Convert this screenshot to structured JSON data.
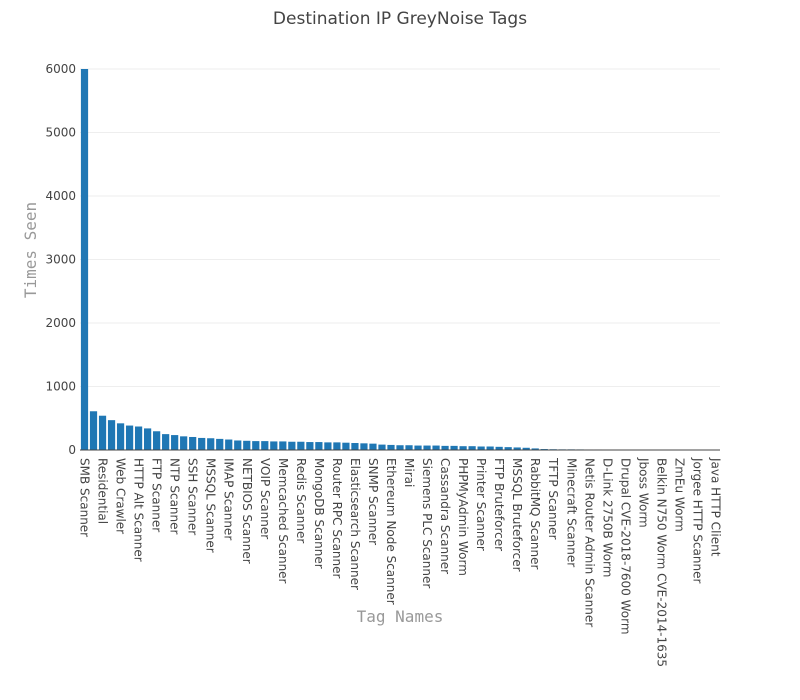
{
  "chart_data": {
    "type": "bar",
    "title": "Destination IP GreyNoise Tags",
    "x_label": "Tag Names",
    "y_label": "Times Seen",
    "color": "#1f77b4",
    "grid": true,
    "ylim": [
      0,
      6000
    ],
    "yticks": [
      0,
      1000,
      2000,
      3000,
      4000,
      5000,
      6000
    ],
    "categories": [
      "SMB Scanner",
      null,
      "Residential",
      null,
      "Web Crawler",
      null,
      "HTTP Alt Scanner",
      null,
      "FTP Scanner",
      null,
      "NTP Scanner",
      null,
      "SSH Scanner",
      null,
      "MSSQL Scanner",
      null,
      "IMAP Scanner",
      null,
      "NETBIOS Scanner",
      null,
      "VOIP Scanner",
      null,
      "Memcached Scanner",
      null,
      "Redis Scanner",
      null,
      "MongoDB Scanner",
      null,
      "Router RPC Scanner",
      null,
      "Elasticsearch Scanner",
      null,
      "SNMP Scanner",
      null,
      "Ethereum Node Scanner",
      null,
      "Mirai",
      null,
      "Siemens PLC Scanner",
      null,
      "Cassandra Scanner",
      null,
      "PHPMyAdmin Worm",
      null,
      "Printer Scanner",
      null,
      "FTP Bruteforcer",
      null,
      "MSSQL Bruteforcer",
      null,
      "RabbitMQ Scanner",
      null,
      "TFTP Scanner",
      null,
      "Minecraft Scanner",
      null,
      "Netis Router Admin Scanner",
      null,
      "D-Link 2750B Worm",
      null,
      "Drupal CVE-2018-7600 Worm",
      null,
      "Jboss Worm",
      null,
      "Belkin N750 Worm CVE-2014-1635",
      null,
      "ZmEu Worm",
      null,
      "Jorgee HTTP Scanner",
      null,
      "Java HTTP Client"
    ],
    "values": [
      6000,
      610,
      540,
      470,
      420,
      385,
      370,
      340,
      295,
      250,
      235,
      215,
      205,
      190,
      185,
      175,
      165,
      150,
      145,
      140,
      140,
      135,
      135,
      130,
      130,
      125,
      125,
      120,
      120,
      115,
      110,
      105,
      100,
      85,
      80,
      75,
      75,
      70,
      70,
      70,
      65,
      65,
      60,
      60,
      55,
      55,
      50,
      45,
      40,
      35,
      25,
      15,
      12,
      10,
      10,
      9,
      8,
      8,
      7,
      7,
      6,
      6,
      5,
      5,
      5,
      4,
      4,
      3,
      3,
      3,
      2
    ]
  }
}
